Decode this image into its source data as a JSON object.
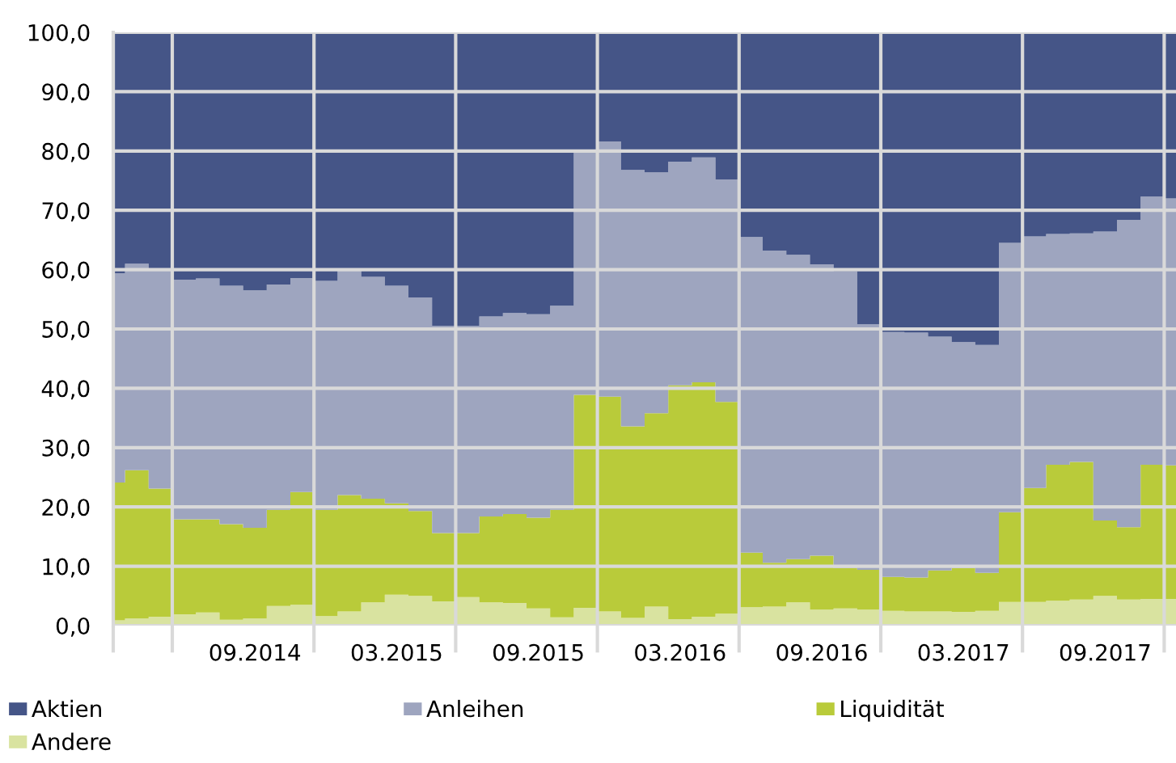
{
  "chart_data": {
    "type": "area",
    "stacked": true,
    "categories": [
      null,
      null,
      null,
      null,
      null,
      null,
      "09.2014",
      null,
      null,
      null,
      null,
      null,
      "03.2015",
      null,
      null,
      null,
      null,
      null,
      "09.2015",
      null,
      null,
      null,
      null,
      null,
      "03.2016",
      null,
      null,
      null,
      null,
      null,
      "09.2016",
      null,
      null,
      null,
      null,
      null,
      "03.2017",
      null,
      null,
      null,
      null,
      null,
      "09.2017",
      null,
      null,
      null
    ],
    "series": [
      {
        "name": "Andere",
        "color": "#d9e3a0",
        "values": [
          0.9,
          1.2,
          1.5,
          1.9,
          2.2,
          1.0,
          1.2,
          3.3,
          3.5,
          1.6,
          2.4,
          3.9,
          5.2,
          5.0,
          4.1,
          4.8,
          3.9,
          3.8,
          2.9,
          1.4,
          3.0,
          2.4,
          1.3,
          3.2,
          1.1,
          1.5,
          2.0,
          3.1,
          3.2,
          3.9,
          2.7,
          2.9,
          2.7,
          2.5,
          2.4,
          2.4,
          2.3,
          2.5,
          4.0,
          4.0,
          4.2,
          4.4,
          5.0,
          4.4,
          4.5,
          4.5
        ]
      },
      {
        "name": "Liquidität",
        "color": "#b9cb3a",
        "values": [
          23.2,
          25.0,
          21.6,
          16.0,
          15.7,
          16.1,
          15.3,
          16.2,
          19.0,
          17.9,
          19.6,
          17.5,
          15.4,
          14.3,
          11.5,
          10.8,
          14.5,
          15.0,
          15.3,
          18.1,
          35.9,
          36.2,
          32.3,
          32.6,
          39.4,
          39.5,
          35.7,
          9.2,
          7.4,
          7.3,
          9.1,
          6.8,
          6.7,
          5.7,
          5.7,
          6.9,
          7.4,
          6.4,
          15.1,
          19.2,
          22.9,
          23.2,
          12.7,
          12.2,
          22.6,
          22.5
        ]
      },
      {
        "name": "Anleihen",
        "color": "#9ea5bf",
        "values": [
          35.3,
          34.8,
          36.9,
          40.4,
          40.6,
          40.2,
          40.0,
          38.0,
          36.1,
          38.6,
          37.9,
          37.4,
          36.7,
          36.0,
          34.9,
          34.9,
          33.7,
          33.9,
          34.3,
          34.4,
          40.9,
          43.0,
          43.2,
          40.6,
          37.7,
          37.9,
          37.5,
          53.2,
          52.6,
          51.3,
          49.1,
          50.0,
          41.4,
          41.3,
          41.3,
          39.4,
          38.1,
          38.4,
          45.4,
          42.4,
          38.9,
          38.5,
          48.7,
          51.8,
          45.2,
          45.0
        ]
      },
      {
        "name": "Aktien",
        "color": "#455587",
        "values": [
          40.6,
          39.0,
          40.0,
          41.7,
          41.5,
          42.7,
          43.5,
          42.5,
          41.4,
          41.9,
          40.1,
          41.2,
          42.7,
          44.7,
          49.5,
          49.5,
          47.9,
          47.3,
          47.5,
          46.1,
          20.2,
          18.4,
          23.2,
          23.6,
          21.8,
          21.1,
          24.8,
          34.5,
          36.8,
          37.5,
          39.1,
          40.3,
          49.2,
          50.5,
          50.6,
          51.3,
          52.2,
          52.7,
          35.5,
          34.4,
          34.0,
          33.9,
          33.6,
          31.6,
          27.7,
          28.0
        ]
      }
    ],
    "ylim": [
      0,
      100
    ],
    "yticks": [
      {
        "value": 0,
        "label": "0,0"
      },
      {
        "value": 10,
        "label": "10,0"
      },
      {
        "value": 20,
        "label": "20,0"
      },
      {
        "value": 30,
        "label": "30,0"
      },
      {
        "value": 40,
        "label": "40,0"
      },
      {
        "value": 50,
        "label": "50,0"
      },
      {
        "value": 60,
        "label": "60,0"
      },
      {
        "value": 70,
        "label": "70,0"
      },
      {
        "value": 80,
        "label": "80,0"
      },
      {
        "value": 90,
        "label": "90,0"
      },
      {
        "value": 100,
        "label": "100,0"
      }
    ],
    "grid": true,
    "legend": "bottom"
  }
}
